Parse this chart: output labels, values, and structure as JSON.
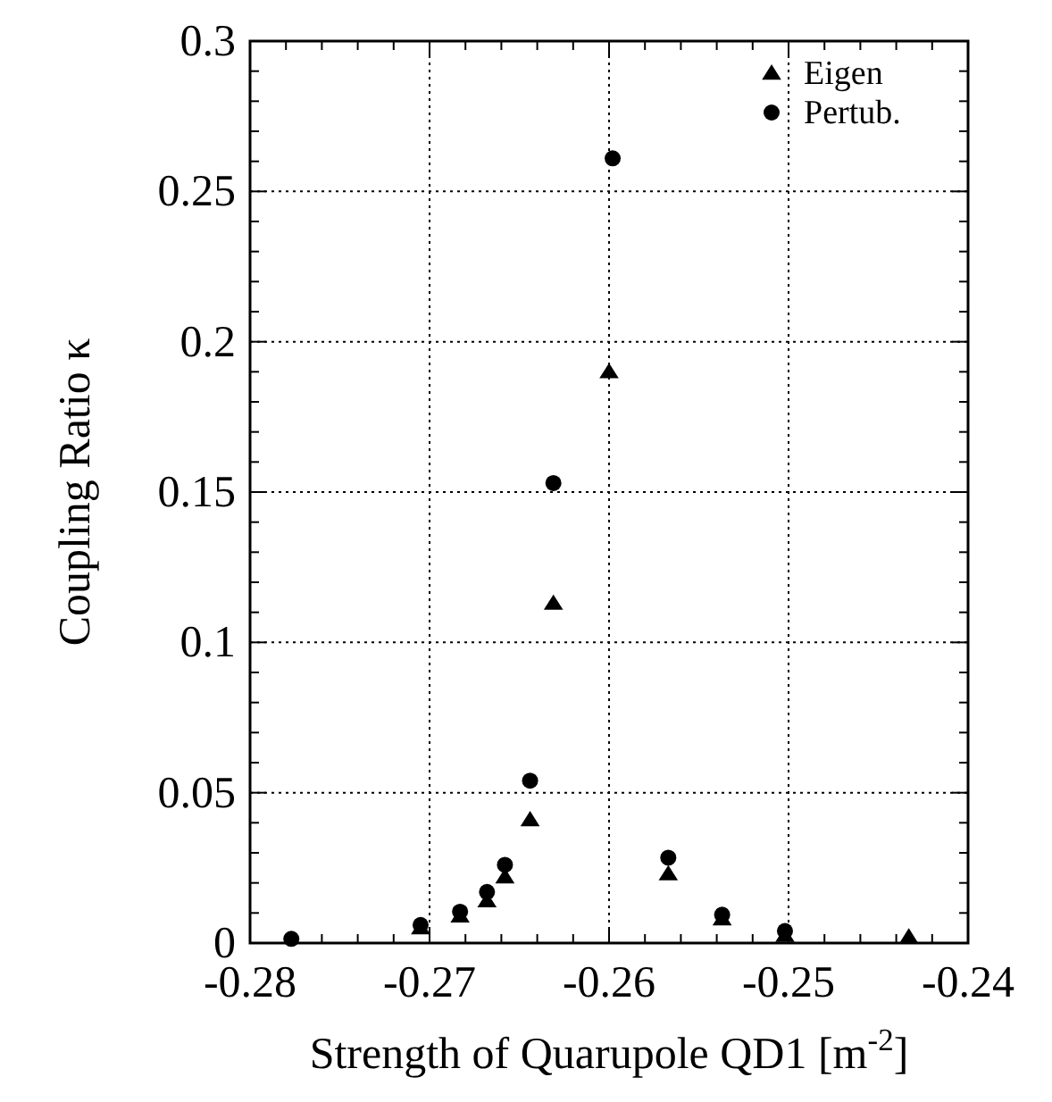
{
  "chart_data": {
    "type": "scatter",
    "xlabel": "Strength of Quarupole QD1 [m$^{-2}$]",
    "ylabel": "Coupling Ratio κ",
    "xlim": [
      -0.28,
      -0.24
    ],
    "xticks": [
      -0.28,
      -0.27,
      -0.26,
      -0.25,
      -0.24
    ],
    "ylim": [
      0,
      0.3
    ],
    "yticks": [
      0,
      0.05,
      0.1,
      0.15,
      0.2,
      0.25,
      0.3
    ],
    "grid": true,
    "legend": "top right",
    "series": [
      {
        "name": "Eigen",
        "color": "#000000",
        "marker": "triangle",
        "x": [
          -0.2705,
          -0.2683,
          -0.2668,
          -0.2658,
          -0.2644,
          -0.2631,
          -0.26,
          -0.2567,
          -0.2537,
          -0.2502,
          -0.2433
        ],
        "values": [
          0.005,
          0.009,
          0.014,
          0.022,
          0.041,
          0.113,
          0.19,
          0.023,
          0.008,
          0.0025,
          0.002
        ]
      },
      {
        "name": "Pertub.",
        "color": "#000000",
        "marker": "circle",
        "x": [
          -0.2777,
          -0.2705,
          -0.2683,
          -0.2668,
          -0.2658,
          -0.2644,
          -0.2631,
          -0.2598,
          -0.2567,
          -0.2537,
          -0.2502
        ],
        "values": [
          0.0014,
          0.006,
          0.0104,
          0.017,
          0.026,
          0.054,
          0.153,
          0.261,
          0.0284,
          0.0094,
          0.004
        ]
      }
    ]
  }
}
